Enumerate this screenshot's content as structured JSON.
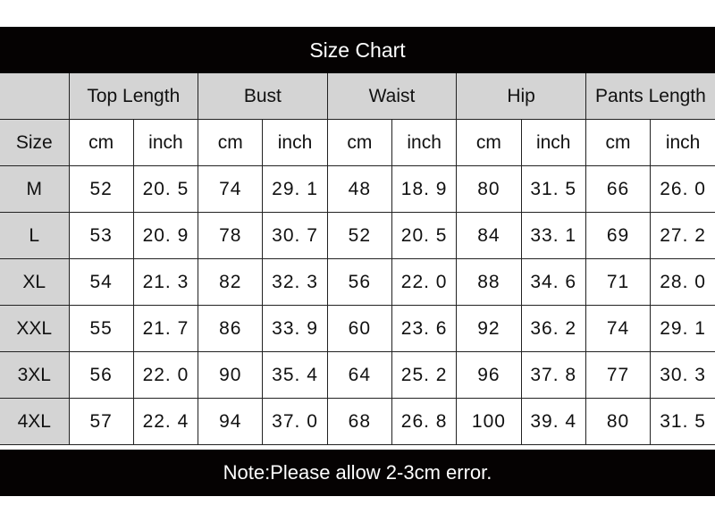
{
  "title": "Size Chart",
  "header": {
    "groups": [
      "Top Length",
      "Bust",
      "Waist",
      "Hip",
      "Pants Length"
    ],
    "size_label": "Size",
    "unit_cm": "cm",
    "unit_inch": "inch"
  },
  "rows": [
    {
      "size": "M",
      "values": [
        "52",
        "20. 5",
        "74",
        "29. 1",
        "48",
        "18. 9",
        "80",
        "31. 5",
        "66",
        "26. 0"
      ]
    },
    {
      "size": "L",
      "values": [
        "53",
        "20. 9",
        "78",
        "30. 7",
        "52",
        "20. 5",
        "84",
        "33. 1",
        "69",
        "27. 2"
      ]
    },
    {
      "size": "XL",
      "values": [
        "54",
        "21. 3",
        "82",
        "32. 3",
        "56",
        "22. 0",
        "88",
        "34. 6",
        "71",
        "28. 0"
      ]
    },
    {
      "size": "XXL",
      "values": [
        "55",
        "21. 7",
        "86",
        "33. 9",
        "60",
        "23. 6",
        "92",
        "36. 2",
        "74",
        "29. 1"
      ]
    },
    {
      "size": "3XL",
      "values": [
        "56",
        "22. 0",
        "90",
        "35. 4",
        "64",
        "25. 2",
        "96",
        "37. 8",
        "77",
        "30. 3"
      ]
    },
    {
      "size": "4XL",
      "values": [
        "57",
        "22. 4",
        "94",
        "37. 0",
        "68",
        "26. 8",
        "100",
        "39. 4",
        "80",
        "31. 5"
      ]
    }
  ],
  "note": "Note:Please allow 2-3cm error.",
  "colors": {
    "bar": "#050202",
    "header_bg": "#d4d4d4"
  }
}
